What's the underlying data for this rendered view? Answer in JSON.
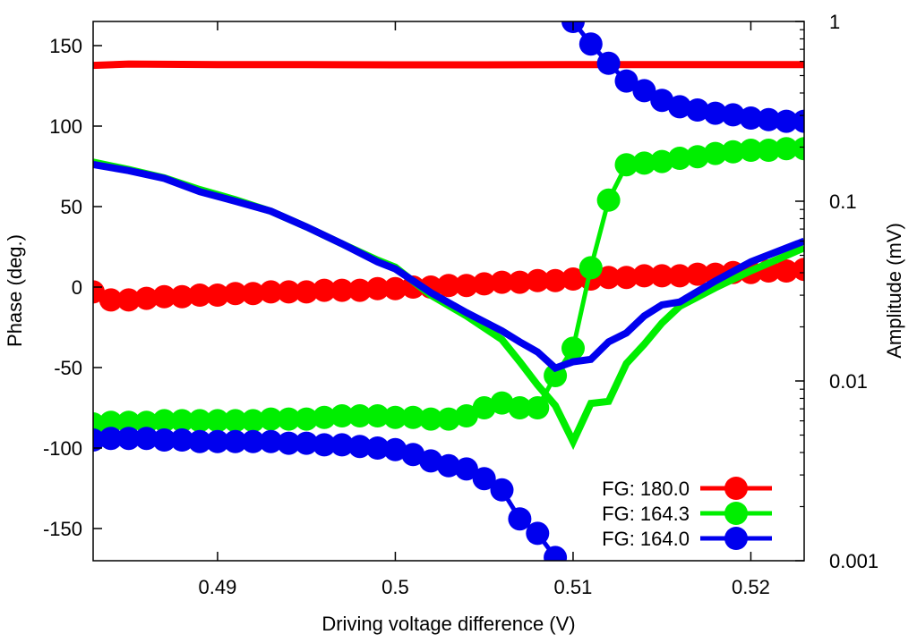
{
  "chart_data": {
    "type": "scatter",
    "title": "",
    "xlabel": "Driving voltage difference (V)",
    "ylabel": "Phase (deg.)",
    "y2label": "Amplitude (mV)",
    "xlim": [
      0.483,
      0.523
    ],
    "ylim": [
      -170,
      165
    ],
    "y2lim": [
      0.001,
      1
    ],
    "y2scale": "log",
    "xticks": [
      0.49,
      0.5,
      0.51,
      0.52
    ],
    "xtick_labels": [
      "0.49",
      "0.5",
      "0.51",
      "0.52"
    ],
    "yticks": [
      150,
      100,
      50,
      0,
      -50,
      -100,
      -150
    ],
    "ytick_labels": [
      "150",
      "100",
      "50",
      "0",
      "-50",
      "-100",
      "-150"
    ],
    "y2ticks": [
      1,
      0.1,
      0.01,
      0.001
    ],
    "y2tick_labels": [
      "1",
      "0.1",
      "0.01",
      "0.001"
    ],
    "grid": false,
    "legend_position": "bottom-right",
    "series": [
      {
        "name": "FG: 180.0",
        "color": "#ff0000",
        "phase": {
          "x": [
            0.483,
            0.484,
            0.485,
            0.486,
            0.487,
            0.488,
            0.489,
            0.49,
            0.491,
            0.492,
            0.493,
            0.494,
            0.495,
            0.496,
            0.497,
            0.498,
            0.499,
            0.5,
            0.501,
            0.502,
            0.503,
            0.504,
            0.505,
            0.506,
            0.507,
            0.508,
            0.509,
            0.51,
            0.511,
            0.512,
            0.513,
            0.514,
            0.515,
            0.516,
            0.517,
            0.518,
            0.519,
            0.52,
            0.521,
            0.522,
            0.523
          ],
          "y": [
            -3,
            -8,
            -8,
            -7,
            -6,
            -6,
            -5,
            -5,
            -4,
            -4,
            -3,
            -3,
            -3,
            -2,
            -2,
            -2,
            -1,
            -1,
            0,
            0,
            1,
            1,
            2,
            3,
            3,
            4,
            4,
            5,
            5,
            6,
            6,
            7,
            7,
            7,
            8,
            8,
            9,
            9,
            10,
            10,
            11
          ]
        },
        "amplitude": {
          "x": [
            0.483,
            0.485,
            0.49,
            0.495,
            0.5,
            0.505,
            0.51,
            0.515,
            0.52,
            0.523
          ],
          "y": [
            0.57,
            0.58,
            0.575,
            0.575,
            0.574,
            0.574,
            0.575,
            0.575,
            0.575,
            0.575
          ]
        }
      },
      {
        "name": "FG: 164.3",
        "color": "#00ee00",
        "phase": {
          "x": [
            0.483,
            0.484,
            0.485,
            0.486,
            0.487,
            0.488,
            0.489,
            0.49,
            0.491,
            0.492,
            0.493,
            0.494,
            0.495,
            0.496,
            0.497,
            0.498,
            0.499,
            0.5,
            0.501,
            0.502,
            0.503,
            0.504,
            0.505,
            0.506,
            0.507,
            0.508,
            0.509,
            0.51,
            0.511,
            0.512,
            0.513,
            0.514,
            0.515,
            0.516,
            0.517,
            0.518,
            0.519,
            0.52,
            0.521,
            0.522,
            0.523
          ],
          "y": [
            -85,
            -84,
            -84,
            -84,
            -83,
            -83,
            -83,
            -83,
            -83,
            -83,
            -82,
            -82,
            -82,
            -81,
            -80,
            -80,
            -80,
            -81,
            -81,
            -82,
            -82,
            -80,
            -75,
            -72,
            -75,
            -75,
            -55,
            -38,
            12,
            54,
            76,
            77,
            78,
            80,
            81,
            83,
            84,
            85,
            85,
            86,
            86
          ]
        },
        "amplitude": {
          "x": [
            0.483,
            0.485,
            0.487,
            0.489,
            0.491,
            0.493,
            0.495,
            0.497,
            0.499,
            0.5,
            0.502,
            0.504,
            0.506,
            0.507,
            0.508,
            0.509,
            0.51,
            0.511,
            0.512,
            0.513,
            0.514,
            0.515,
            0.516,
            0.518,
            0.52,
            0.523
          ],
          "y": [
            0.165,
            0.15,
            0.135,
            0.116,
            0.102,
            0.088,
            0.072,
            0.058,
            0.047,
            0.043,
            0.03,
            0.023,
            0.017,
            0.0128,
            0.0095,
            0.0073,
            0.0046,
            0.0075,
            0.0077,
            0.0125,
            0.016,
            0.021,
            0.026,
            0.033,
            0.041,
            0.055
          ]
        }
      },
      {
        "name": "FG: 164.0",
        "color": "#0000ee",
        "phase": {
          "x": [
            0.483,
            0.484,
            0.485,
            0.486,
            0.487,
            0.488,
            0.489,
            0.49,
            0.491,
            0.492,
            0.493,
            0.494,
            0.495,
            0.496,
            0.497,
            0.498,
            0.499,
            0.5,
            0.501,
            0.502,
            0.503,
            0.504,
            0.505,
            0.506,
            0.507,
            0.508,
            0.509,
            0.51,
            0.511,
            0.512,
            0.513,
            0.514,
            0.515,
            0.516,
            0.517,
            0.518,
            0.519,
            0.52,
            0.521,
            0.522,
            0.523
          ],
          "y": [
            -95,
            -94,
            -94,
            -94,
            -95,
            -95,
            -96,
            -96,
            -96,
            -96,
            -96,
            -97,
            -97,
            -98,
            -98,
            -99,
            -100,
            -101,
            -104,
            -108,
            -111,
            -113,
            -119,
            -126,
            -144,
            -153,
            -168,
            165,
            151,
            139,
            128,
            122,
            116,
            112,
            110,
            108,
            107,
            105,
            104,
            103,
            103
          ]
        },
        "amplitude": {
          "x": [
            0.483,
            0.485,
            0.487,
            0.489,
            0.491,
            0.493,
            0.495,
            0.497,
            0.499,
            0.5,
            0.502,
            0.504,
            0.506,
            0.507,
            0.508,
            0.509,
            0.51,
            0.511,
            0.512,
            0.513,
            0.514,
            0.515,
            0.516,
            0.518,
            0.52,
            0.523
          ],
          "y": [
            0.16,
            0.148,
            0.134,
            0.113,
            0.1,
            0.088,
            0.072,
            0.058,
            0.046,
            0.042,
            0.031,
            0.024,
            0.019,
            0.0165,
            0.0145,
            0.0118,
            0.0128,
            0.0132,
            0.0165,
            0.0185,
            0.023,
            0.0265,
            0.0275,
            0.036,
            0.046,
            0.06
          ]
        }
      }
    ]
  }
}
